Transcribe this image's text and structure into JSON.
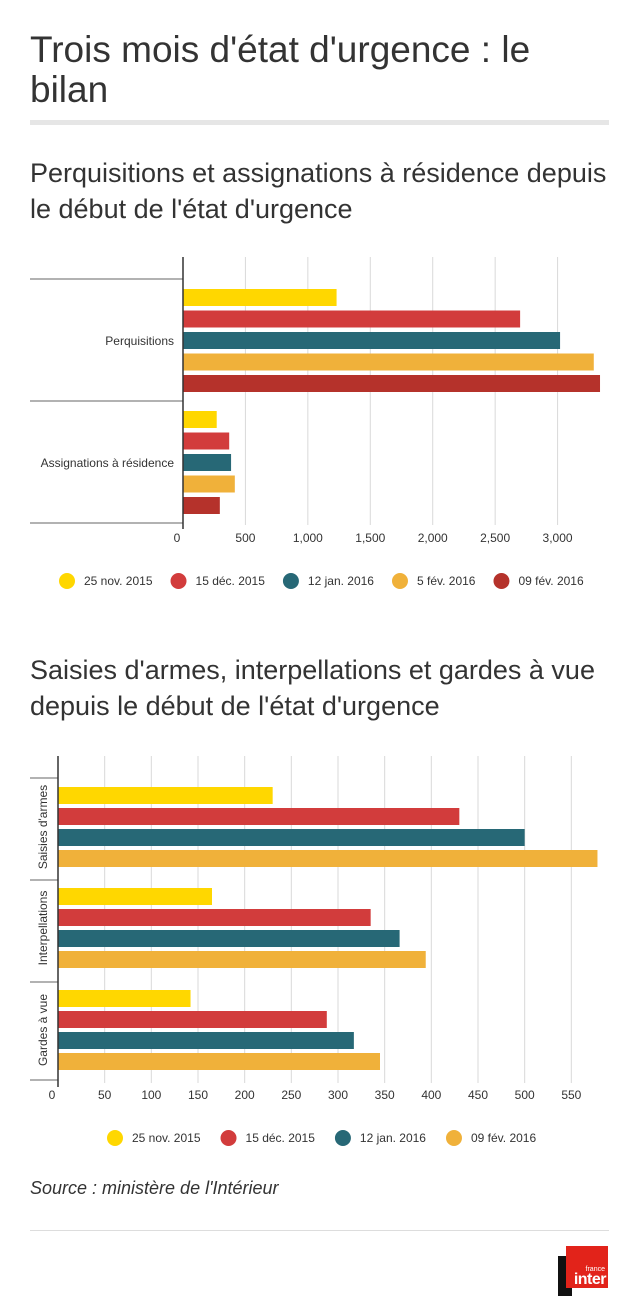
{
  "title": "Trois mois d'état d'urgence : le bilan",
  "source": "Source : ministère de l'Intérieur",
  "logo": {
    "small": "france",
    "big": "inter"
  },
  "colors": {
    "yellow": "#ffd700",
    "red": "#d23c3c",
    "teal": "#276876",
    "orange": "#f0b13a",
    "darkred": "#b5322b"
  },
  "chart_data": [
    {
      "type": "bar",
      "orientation": "horizontal",
      "title": "Perquisitions et assignations à résidence depuis le début de l'état d'urgence",
      "categories": [
        "Perquisitions",
        "Assignations à résidence"
      ],
      "series": [
        {
          "name": "25 nov. 2015",
          "color": "#ffd700",
          "values": [
            1230,
            270
          ]
        },
        {
          "name": "15 déc. 2015",
          "color": "#d23c3c",
          "values": [
            2700,
            370
          ]
        },
        {
          "name": "12 jan. 2016",
          "color": "#276876",
          "values": [
            3020,
            385
          ]
        },
        {
          "name": "5 fév. 2016",
          "color": "#f0b13a",
          "values": [
            3290,
            415
          ]
        },
        {
          "name": "09 fév. 2016",
          "color": "#b5322b",
          "values": [
            3340,
            295
          ]
        }
      ],
      "xlim": [
        0,
        3500
      ],
      "xticks": [
        0,
        500,
        1000,
        1500,
        2000,
        2500,
        3000
      ],
      "xtick_labels": [
        "0",
        "500",
        "1,000",
        "1,500",
        "2,000",
        "2,500",
        "3,000"
      ],
      "xlabel": "",
      "ylabel": "",
      "grid": true,
      "legend": "bottom"
    },
    {
      "type": "bar",
      "orientation": "horizontal",
      "title": "Saisies d'armes, interpellations et gardes à vue depuis le début de l'état d'urgence",
      "categories": [
        "Saisies d'armes",
        "Interpellations",
        "Gardes à vue"
      ],
      "series": [
        {
          "name": "25 nov. 2015",
          "color": "#ffd700",
          "values": [
            230,
            165,
            142
          ]
        },
        {
          "name": "15 déc. 2015",
          "color": "#d23c3c",
          "values": [
            430,
            335,
            288
          ]
        },
        {
          "name": "12 jan. 2016",
          "color": "#276876",
          "values": [
            500,
            366,
            317
          ]
        },
        {
          "name": "09 fév. 2016",
          "color": "#f0b13a",
          "values": [
            578,
            394,
            345
          ]
        }
      ],
      "xlim": [
        0,
        585
      ],
      "xticks": [
        0,
        50,
        100,
        150,
        200,
        250,
        300,
        350,
        400,
        450,
        500,
        550
      ],
      "xtick_labels": [
        "0",
        "50",
        "100",
        "150",
        "200",
        "250",
        "300",
        "350",
        "400",
        "450",
        "500",
        "550"
      ],
      "xlabel": "",
      "ylabel": "",
      "grid": true,
      "legend": "bottom"
    }
  ]
}
